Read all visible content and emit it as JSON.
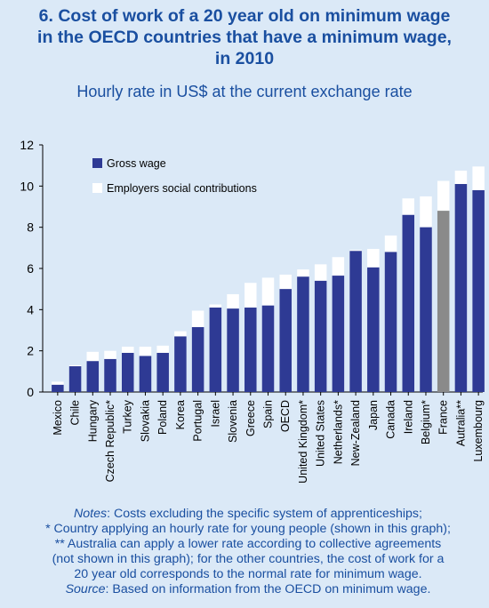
{
  "title_lines": [
    "6. Cost of work of a 20 year old on minimum wage",
    "in the OECD countries that have a minimum wage,",
    "in 2010"
  ],
  "subtitle": "Hourly rate in US$ at the current exchange rate",
  "colors": {
    "background": "#dbe9f7",
    "gross": "#2e3a94",
    "france": "#8a8a8a",
    "employer": "#ffffff",
    "text": "#1a4fa0"
  },
  "chart_data": {
    "type": "bar",
    "stacked": true,
    "ylim": [
      0,
      12
    ],
    "yticks": [
      0,
      2,
      4,
      6,
      8,
      10,
      12
    ],
    "grid": false,
    "legend_position": "top-left",
    "categories": [
      "Mexico",
      "Chile",
      "Hungary",
      "Czech Republic*",
      "Turkey",
      "Slovakia",
      "Poland",
      "Korea",
      "Portugal",
      "Israel",
      "Slovenia",
      "Greece",
      "Spain",
      "OECD",
      "United Kingdom*",
      "United States",
      "Netherlands*",
      "New-Zealand",
      "Japan",
      "Canada",
      "Ireland",
      "Belgium*",
      "France",
      "Autralia**",
      "Luxembourg"
    ],
    "series": [
      {
        "name": "Gross wage",
        "values": [
          0.35,
          1.25,
          1.5,
          1.6,
          1.9,
          1.75,
          1.9,
          2.7,
          3.15,
          4.1,
          4.05,
          4.1,
          4.2,
          5.0,
          5.6,
          5.4,
          5.65,
          6.85,
          6.05,
          6.8,
          8.6,
          8.0,
          8.8,
          10.1,
          9.8
        ]
      },
      {
        "name": "Employers social contributions",
        "values": [
          0.15,
          0.05,
          0.45,
          0.4,
          0.3,
          0.45,
          0.35,
          0.25,
          0.8,
          0.15,
          0.7,
          1.2,
          1.35,
          0.7,
          0.35,
          0.8,
          0.9,
          0.05,
          0.9,
          0.8,
          0.8,
          1.5,
          1.45,
          0.65,
          1.15
        ]
      }
    ],
    "highlight_category": "France"
  },
  "notes": {
    "line1_label": "Notes",
    "line1_text": ": Costs excluding the specific system of apprenticeships;",
    "lines": [
      "* Country applying an hourly rate for young people (shown in this graph);",
      "** Australia can apply a lower rate according to collective agreements",
      "(not shown in this graph); for the other countries, the cost of work for a",
      "20 year old corresponds to the normal rate for minimum wage."
    ],
    "source_label": "Source",
    "source_text": ": Based on information from the OECD on minimum wage."
  }
}
